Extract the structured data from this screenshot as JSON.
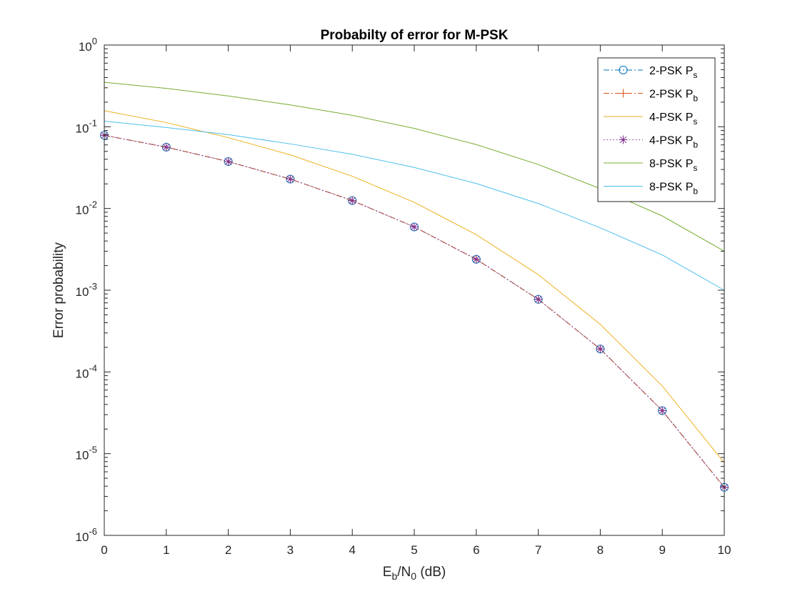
{
  "chart_data": {
    "type": "line",
    "title": "Probabilty of error for M-PSK",
    "xlabel": {
      "main": "E",
      "sub1": "b",
      "mid": "/N",
      "sub2": "0",
      "tail": " (dB)"
    },
    "ylabel": "Error probability",
    "xlim": [
      0,
      10
    ],
    "ylim": [
      1e-06,
      1
    ],
    "yscale": "log",
    "grid": false,
    "legend_position": "top-right",
    "x_ticks": [
      "0",
      "1",
      "2",
      "3",
      "4",
      "5",
      "6",
      "7",
      "8",
      "9",
      "10"
    ],
    "y_ticks": [
      {
        "base": "10",
        "exp": "-6"
      },
      {
        "base": "10",
        "exp": "-5"
      },
      {
        "base": "10",
        "exp": "-4"
      },
      {
        "base": "10",
        "exp": "-3"
      },
      {
        "base": "10",
        "exp": "-2"
      },
      {
        "base": "10",
        "exp": "-1"
      },
      {
        "base": "10",
        "exp": "0"
      }
    ],
    "x": [
      0,
      1,
      2,
      3,
      4,
      5,
      6,
      7,
      8,
      9,
      10
    ],
    "series": [
      {
        "name": "2-PSK P",
        "name_sub": "s",
        "color": "#0072BD",
        "dash": "8,3,2,3",
        "marker": "circle",
        "values": [
          0.0786,
          0.0563,
          0.0375,
          0.0229,
          0.0125,
          0.00595,
          0.00239,
          0.000773,
          0.000191,
          3.36e-05,
          3.87e-06
        ]
      },
      {
        "name": "2-PSK P",
        "name_sub": "b",
        "color": "#D95319",
        "dash": "8,3,2,3",
        "marker": "plus",
        "values": [
          0.0786,
          0.0563,
          0.0375,
          0.0229,
          0.0125,
          0.00595,
          0.00239,
          0.000773,
          0.000191,
          3.36e-05,
          3.87e-06
        ]
      },
      {
        "name": "4-PSK P",
        "name_sub": "s",
        "color": "#EDB120",
        "dash": "",
        "marker": "none",
        "values": [
          0.1572,
          0.1126,
          0.0736,
          0.0453,
          0.0248,
          0.0119,
          0.00478,
          0.00155,
          0.000382,
          6.72e-05,
          7.74e-06
        ]
      },
      {
        "name": "4-PSK P",
        "name_sub": "b",
        "color": "#7E2F8E",
        "dash": "1.5,3",
        "marker": "star",
        "values": [
          0.0786,
          0.0563,
          0.0375,
          0.0229,
          0.0125,
          0.00595,
          0.00239,
          0.000773,
          0.000191,
          3.36e-05,
          3.87e-06
        ]
      },
      {
        "name": "8-PSK P",
        "name_sub": "s",
        "color": "#77AC30",
        "dash": "",
        "marker": "none",
        "values": [
          0.35,
          0.295,
          0.238,
          0.185,
          0.138,
          0.0955,
          0.0605,
          0.0345,
          0.0175,
          0.0081,
          0.003
        ]
      },
      {
        "name": "8-PSK P",
        "name_sub": "b",
        "color": "#4DBEEE",
        "dash": "",
        "marker": "none",
        "values": [
          0.117,
          0.098,
          0.08,
          0.0617,
          0.046,
          0.0318,
          0.0202,
          0.0115,
          0.0058,
          0.0027,
          0.001
        ]
      }
    ]
  }
}
